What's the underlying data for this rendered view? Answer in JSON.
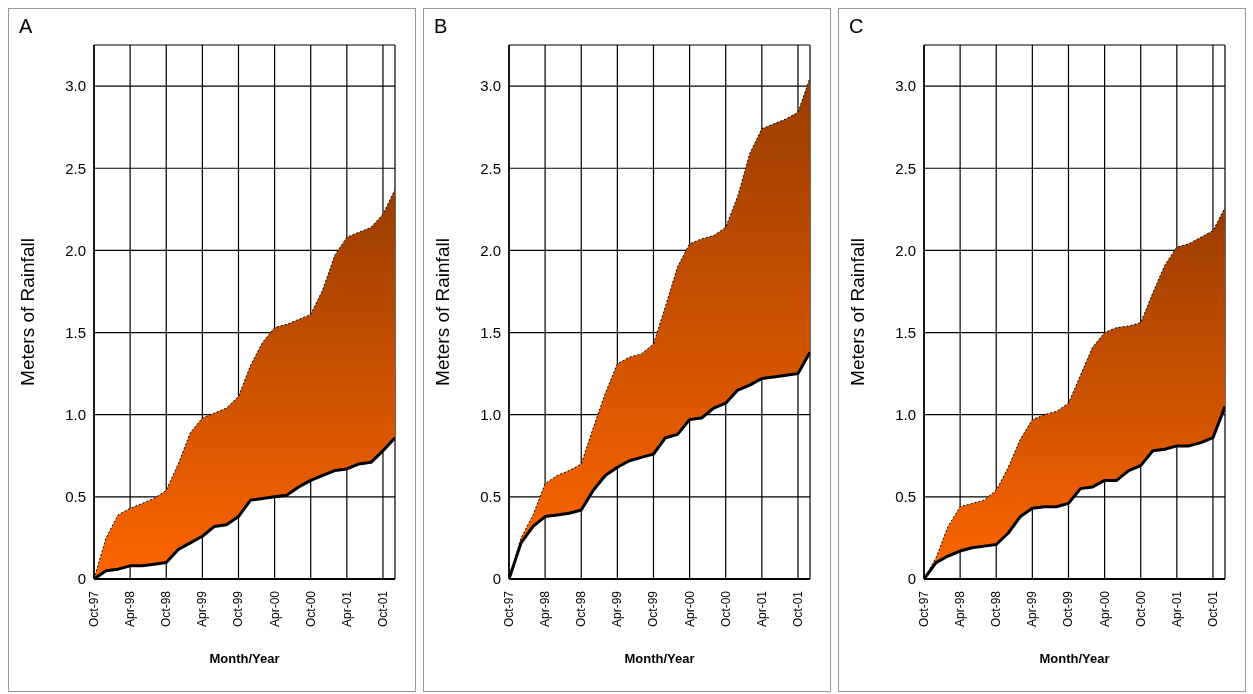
{
  "chart_data": [
    {
      "type": "area",
      "title": "A",
      "xlabel": "Month/Year",
      "ylabel": "Meters of Rainfall",
      "x": [
        "1997-10",
        "1997-12",
        "1998-02",
        "1998-04",
        "1998-06",
        "1998-08",
        "1998-10",
        "1998-12",
        "1999-02",
        "1999-04",
        "1999-06",
        "1999-08",
        "1999-10",
        "1999-12",
        "2000-02",
        "2000-04",
        "2000-06",
        "2000-08",
        "2000-10",
        "2000-12",
        "2001-02",
        "2001-04",
        "2001-06",
        "2001-08",
        "2001-10",
        "2001-12"
      ],
      "series": [
        {
          "type": "line",
          "color": "#000000",
          "values": [
            0,
            0.05,
            0.06,
            0.08,
            0.08,
            0.09,
            0.1,
            0.18,
            0.22,
            0.26,
            0.32,
            0.33,
            0.38,
            0.48,
            0.49,
            0.5,
            0.51,
            0.56,
            0.6,
            0.63,
            0.66,
            0.67,
            0.7,
            0.71,
            0.78,
            0.86
          ]
        },
        {
          "color": "#ff6600",
          "line_style": "dotted",
          "values": [
            0,
            0.25,
            0.39,
            0.43,
            0.46,
            0.49,
            0.54,
            0.7,
            0.89,
            0.98,
            1.01,
            1.04,
            1.11,
            1.3,
            1.44,
            1.53,
            1.55,
            1.58,
            1.61,
            1.76,
            1.97,
            2.08,
            2.11,
            2.14,
            2.22,
            2.37
          ]
        }
      ],
      "xlim": [
        "1997-10",
        "2001-12"
      ],
      "xticks": [
        {
          "value": "1997-10",
          "label": "Oct-97"
        },
        {
          "value": "1998-04",
          "label": "Apr-98"
        },
        {
          "value": "1998-10",
          "label": "Oct-98"
        },
        {
          "value": "1999-04",
          "label": "Apr-99"
        },
        {
          "value": "1999-10",
          "label": "Oct-99"
        },
        {
          "value": "2000-04",
          "label": "Apr-00"
        },
        {
          "value": "2000-10",
          "label": "Oct-00"
        },
        {
          "value": "2001-04",
          "label": "Apr-01"
        },
        {
          "value": "2001-10",
          "label": "Oct-01"
        }
      ],
      "ylim": [
        0,
        3.25
      ],
      "yticks": [
        0,
        0.5,
        {
          "value": 1,
          "label": "1.0"
        },
        1.5,
        {
          "value": 2,
          "label": "2.0"
        },
        2.5,
        {
          "value": 3,
          "label": "3.0"
        }
      ],
      "grid": true
    },
    {
      "type": "area",
      "title": "B",
      "xlabel": "Month/Year",
      "ylabel": "Meters of Rainfall",
      "x": [
        "1997-10",
        "1997-12",
        "1998-02",
        "1998-04",
        "1998-06",
        "1998-08",
        "1998-10",
        "1998-12",
        "1999-02",
        "1999-04",
        "1999-06",
        "1999-08",
        "1999-10",
        "1999-12",
        "2000-02",
        "2000-04",
        "2000-06",
        "2000-08",
        "2000-10",
        "2000-12",
        "2001-02",
        "2001-04",
        "2001-06",
        "2001-08",
        "2001-10",
        "2001-12"
      ],
      "series": [
        {
          "type": "line",
          "color": "#000000",
          "values": [
            0,
            0.22,
            0.32,
            0.38,
            0.39,
            0.4,
            0.42,
            0.54,
            0.63,
            0.68,
            0.72,
            0.74,
            0.76,
            0.86,
            0.88,
            0.97,
            0.98,
            1.04,
            1.07,
            1.15,
            1.18,
            1.22,
            1.23,
            1.24,
            1.25,
            1.38
          ]
        },
        {
          "color": "#ff6600",
          "line_style": "dotted",
          "values": [
            0,
            0.25,
            0.39,
            0.58,
            0.63,
            0.66,
            0.7,
            0.92,
            1.13,
            1.31,
            1.35,
            1.37,
            1.43,
            1.66,
            1.9,
            2.04,
            2.07,
            2.09,
            2.14,
            2.33,
            2.59,
            2.74,
            2.77,
            2.8,
            2.84,
            3.05
          ]
        }
      ],
      "xlim": [
        "1997-10",
        "2001-12"
      ],
      "xticks": [
        {
          "value": "1997-10",
          "label": "Oct-97"
        },
        {
          "value": "1998-04",
          "label": "Apr-98"
        },
        {
          "value": "1998-10",
          "label": "Oct-98"
        },
        {
          "value": "1999-04",
          "label": "Apr-99"
        },
        {
          "value": "1999-10",
          "label": "Oct-99"
        },
        {
          "value": "2000-04",
          "label": "Apr-00"
        },
        {
          "value": "2000-10",
          "label": "Oct-00"
        },
        {
          "value": "2001-04",
          "label": "Apr-01"
        },
        {
          "value": "2001-10",
          "label": "Oct-01"
        }
      ],
      "ylim": [
        0,
        3.25
      ],
      "yticks": [
        0,
        0.5,
        {
          "value": 1,
          "label": "1.0"
        },
        1.5,
        {
          "value": 2,
          "label": "2.0"
        },
        2.5,
        {
          "value": 3,
          "label": "3.0"
        }
      ],
      "grid": true
    },
    {
      "type": "area",
      "title": "C",
      "xlabel": "Month/Year",
      "ylabel": "Meters of Rainfall",
      "x": [
        "1997-10",
        "1997-12",
        "1998-02",
        "1998-04",
        "1998-06",
        "1998-08",
        "1998-10",
        "1998-12",
        "1999-02",
        "1999-04",
        "1999-06",
        "1999-08",
        "1999-10",
        "1999-12",
        "2000-02",
        "2000-04",
        "2000-06",
        "2000-08",
        "2000-10",
        "2000-12",
        "2001-02",
        "2001-04",
        "2001-06",
        "2001-08",
        "2001-10",
        "2001-12"
      ],
      "series": [
        {
          "type": "line",
          "color": "#000000",
          "values": [
            0,
            0.1,
            0.14,
            0.17,
            0.19,
            0.2,
            0.21,
            0.28,
            0.38,
            0.43,
            0.44,
            0.44,
            0.46,
            0.55,
            0.56,
            0.6,
            0.6,
            0.66,
            0.69,
            0.78,
            0.79,
            0.81,
            0.81,
            0.83,
            0.86,
            1.05
          ]
        },
        {
          "color": "#ff6600",
          "line_style": "dotted",
          "values": [
            0,
            0.13,
            0.32,
            0.44,
            0.46,
            0.48,
            0.54,
            0.68,
            0.85,
            0.97,
            1.0,
            1.02,
            1.07,
            1.24,
            1.41,
            1.5,
            1.53,
            1.54,
            1.56,
            1.74,
            1.91,
            2.02,
            2.04,
            2.08,
            2.12,
            2.26
          ]
        }
      ],
      "xlim": [
        "1997-10",
        "2001-12"
      ],
      "xticks": [
        {
          "value": "1997-10",
          "label": "Oct-97"
        },
        {
          "value": "1998-04",
          "label": "Apr-98"
        },
        {
          "value": "1998-10",
          "label": "Oct-98"
        },
        {
          "value": "1999-04",
          "label": "Apr-99"
        },
        {
          "value": "1999-10",
          "label": "Oct-99"
        },
        {
          "value": "2000-04",
          "label": "Apr-00"
        },
        {
          "value": "2000-10",
          "label": "Oct-00"
        },
        {
          "value": "2001-04",
          "label": "Apr-01"
        },
        {
          "value": "2001-10",
          "label": "Oct-01"
        }
      ],
      "ylim": [
        0,
        3.25
      ],
      "yticks": [
        0,
        0.5,
        {
          "value": 1,
          "label": "1.0"
        },
        1.5,
        {
          "value": 2,
          "label": "2.0"
        },
        2.5,
        {
          "value": 3,
          "label": "3.0"
        }
      ],
      "grid": true
    }
  ]
}
